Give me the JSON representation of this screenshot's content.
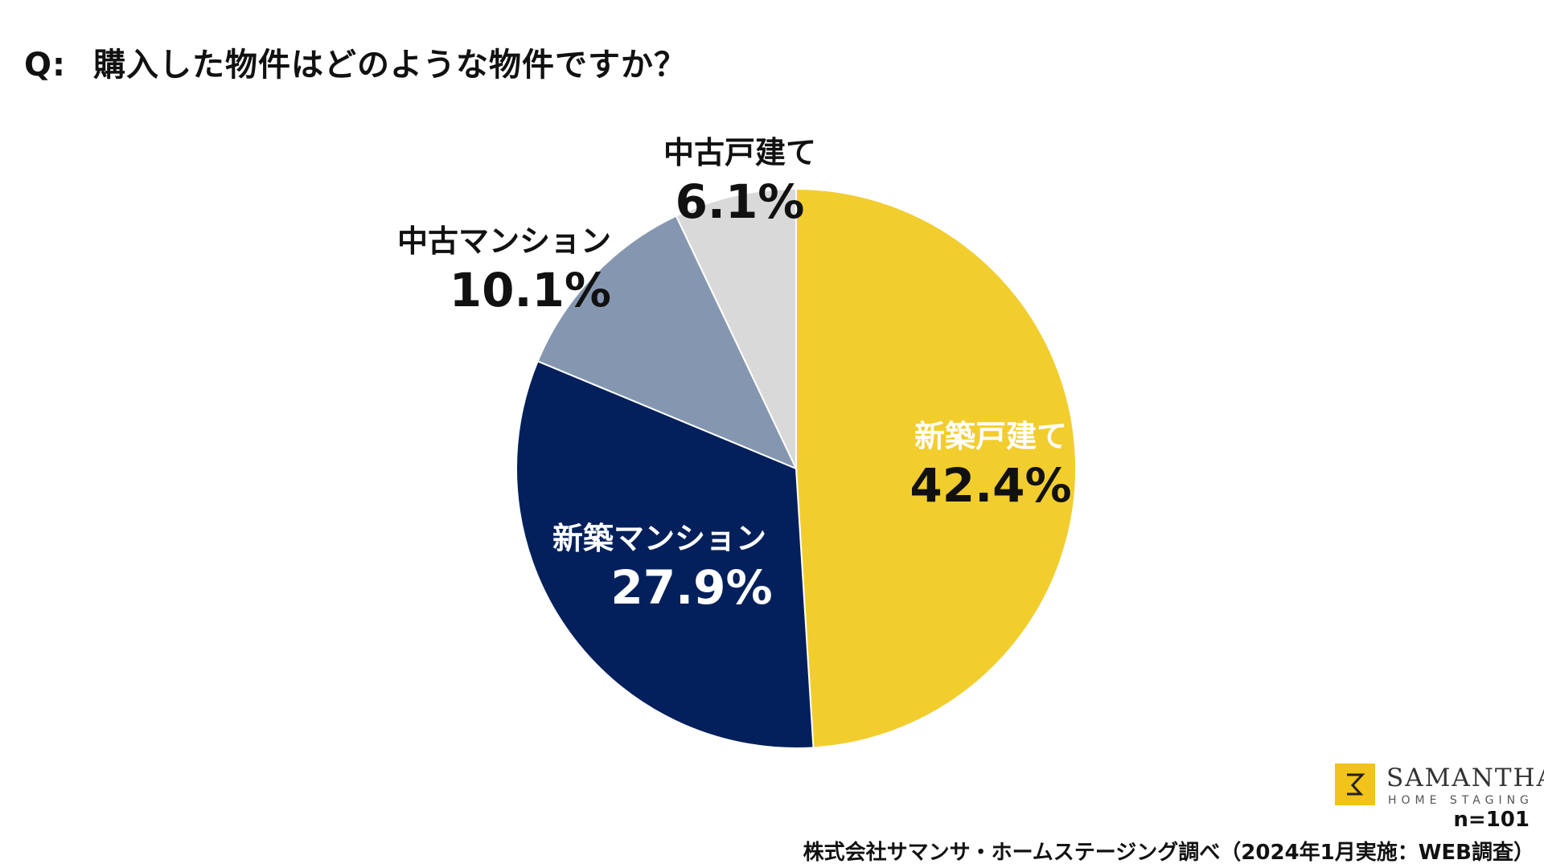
{
  "question": {
    "prefix": "Q:",
    "text": "購入した物件はどのような物件ですか？"
  },
  "chart_data": {
    "type": "pie",
    "title": "",
    "start_angle_deg": 0,
    "direction": "clockwise",
    "slices": [
      {
        "name": "新築戸建て",
        "value": 42.4,
        "label": "42.4%",
        "color": "#f2cd2e"
      },
      {
        "name": "新築マンション",
        "value": 27.9,
        "label": "27.9%",
        "color": "#03205c"
      },
      {
        "name": "中古マンション",
        "value": 10.1,
        "label": "10.1%",
        "color": "#8597b0"
      },
      {
        "name": "中古戸建て",
        "value": 6.1,
        "label": "6.1%",
        "color": "#d9d9d9"
      }
    ]
  },
  "logo": {
    "name": "SAMANTHA",
    "subtitle": "HOME STAGING",
    "color": "#f2c318"
  },
  "footer": {
    "sample": "n=101",
    "source": "株式会社サマンサ・ホームステージング調べ（2024年1月実施：WEB調査）"
  }
}
